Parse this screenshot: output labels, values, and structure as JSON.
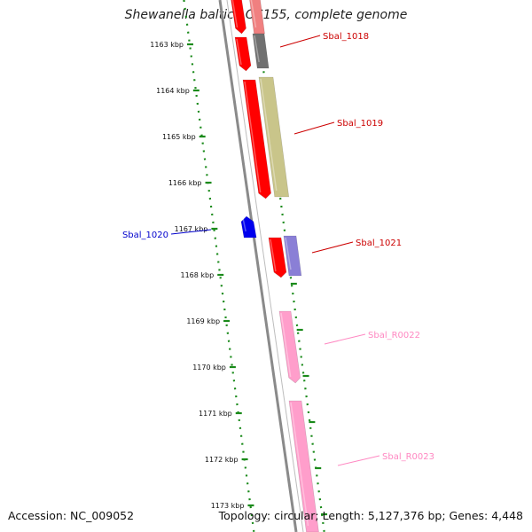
{
  "title": "Shewanella baltica OS155, complete genome",
  "footer": {
    "accession": "Accession: NC_009052",
    "summary": "Topology: circular; Length: 5,127,376 bp; Genes: 4,448"
  },
  "colors": {
    "backbone": "#8a8a8a",
    "ruler": "#1a8a1a",
    "cds_forward": "#ff0000",
    "cds_reverse": "#0000ee",
    "rna": "#ff9ecb",
    "cog_gray": "#707070",
    "cog_olive": "#c9c58a",
    "cog_purple": "#8a7fd6"
  },
  "ruler_ticks": [
    {
      "kbp": 1163,
      "label": "1163 kbp"
    },
    {
      "kbp": 1164,
      "label": "1164 kbp"
    },
    {
      "kbp": 1165,
      "label": "1165 kbp"
    },
    {
      "kbp": 1166,
      "label": "1166 kbp"
    },
    {
      "kbp": 1167,
      "label": "1167 kbp"
    },
    {
      "kbp": 1168,
      "label": "1168 kbp"
    },
    {
      "kbp": 1169,
      "label": "1169 kbp"
    },
    {
      "kbp": 1170,
      "label": "1170 kbp"
    },
    {
      "kbp": 1171,
      "label": "1171 kbp"
    },
    {
      "kbp": 1172,
      "label": "1172 kbp"
    },
    {
      "kbp": 1173,
      "label": "1173 kbp"
    }
  ],
  "genes": [
    {
      "label": "Sbal_1018",
      "color": "#cc0000"
    },
    {
      "label": "Sbal_1019",
      "color": "#cc0000"
    },
    {
      "label": "Sbal_1020",
      "color": "#0000cc"
    },
    {
      "label": "Sbal_1021",
      "color": "#cc0000"
    },
    {
      "label": "Sbal_R0022",
      "color": "#ff88c2"
    },
    {
      "label": "Sbal_R0023",
      "color": "#ff88c2"
    }
  ]
}
